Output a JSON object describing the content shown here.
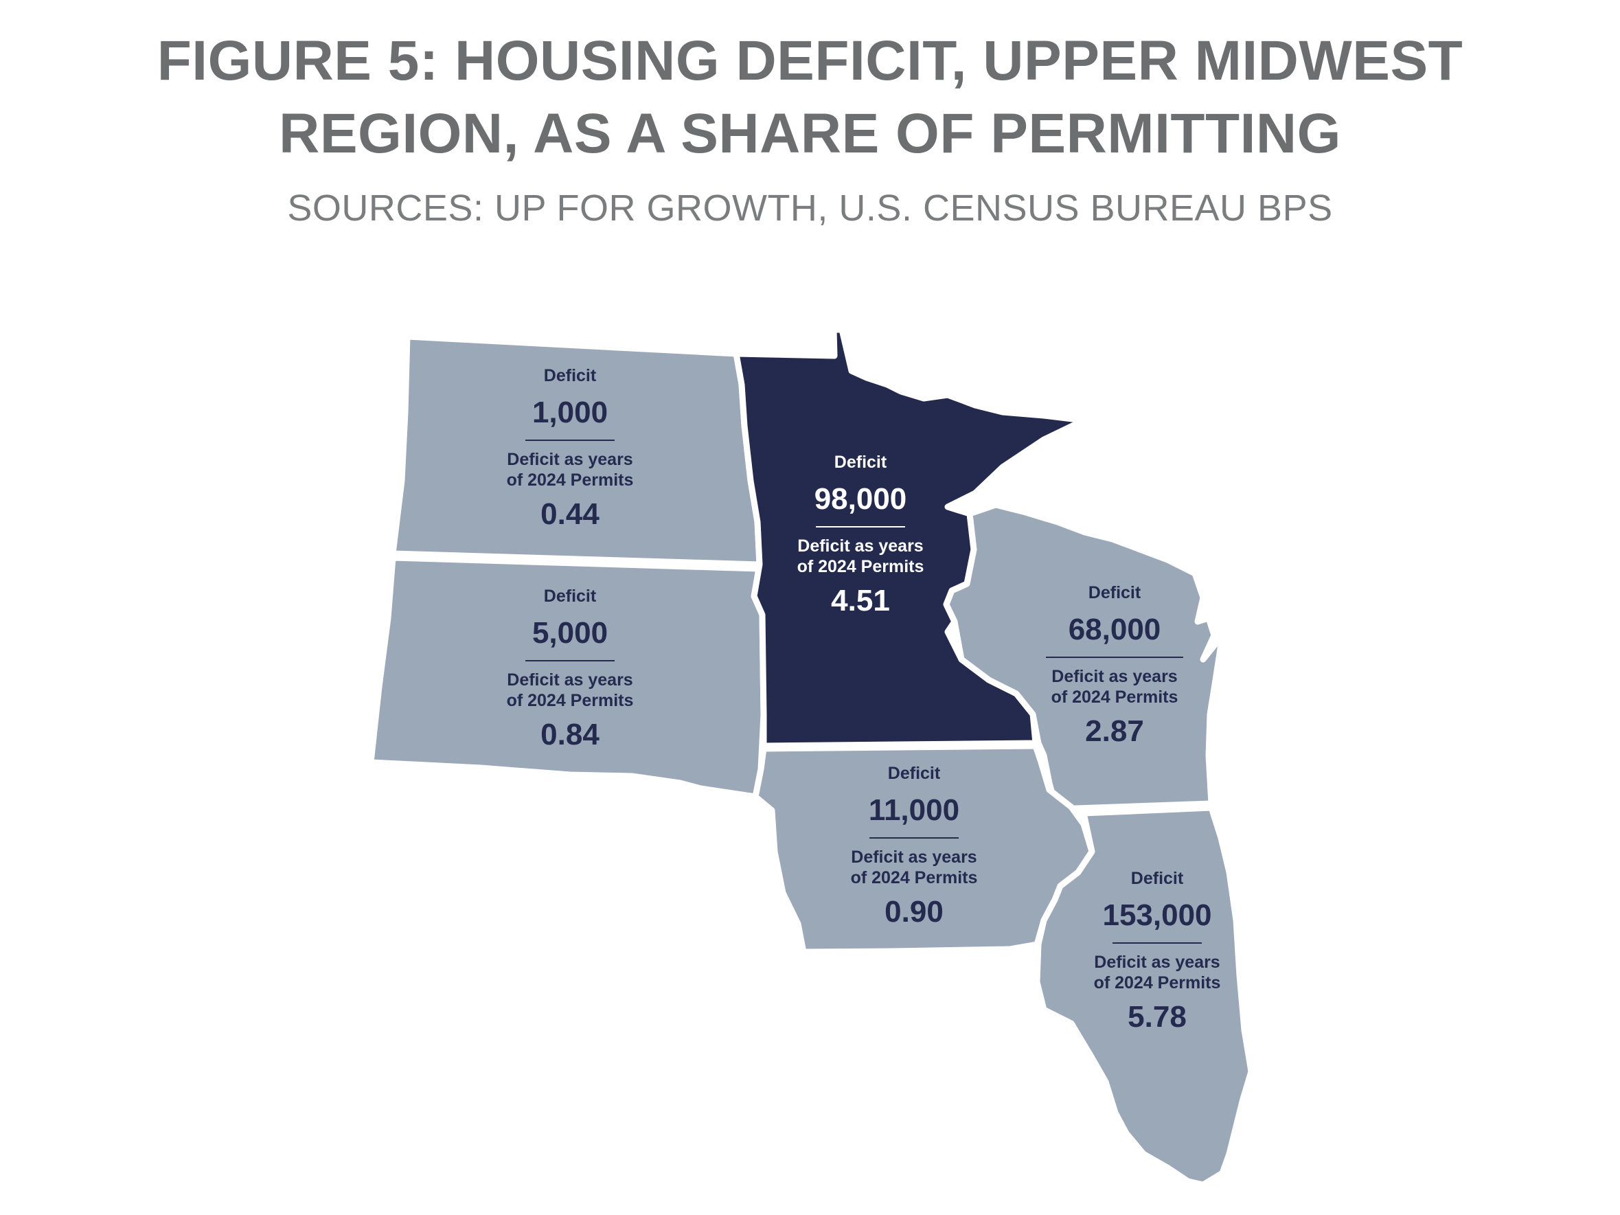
{
  "title_line1": "FIGURE 5: HOUSING DEFICIT, UPPER MIDWEST",
  "title_line2": "REGION, AS A SHARE OF PERMITTING",
  "subtitle": "SOURCES: UP FOR GROWTH, U.S. CENSUS BUREAU BPS",
  "colors": {
    "state_fill": "#9aa8b8",
    "highlight_fill": "#232a4e",
    "label_dark": "#242b4f",
    "title_gray": "#6d6e70"
  },
  "states": {
    "north_dakota": {
      "deficit_label": "Deficit",
      "deficit": "1,000",
      "years_label_line1": "Deficit as years",
      "years_label_line2": "of 2024 Permits",
      "years": "0.44"
    },
    "south_dakota": {
      "deficit_label": "Deficit",
      "deficit": "5,000",
      "years_label_line1": "Deficit as years",
      "years_label_line2": "of 2024 Permits",
      "years": "0.84"
    },
    "minnesota": {
      "deficit_label": "Deficit",
      "deficit": "98,000",
      "years_label_line1": "Deficit as years",
      "years_label_line2": "of 2024 Permits",
      "years": "4.51",
      "highlighted": true
    },
    "wisconsin": {
      "deficit_label": "Deficit",
      "deficit": "68,000",
      "years_label_line1": "Deficit as years",
      "years_label_line2": "of 2024 Permits",
      "years": "2.87"
    },
    "iowa": {
      "deficit_label": "Deficit",
      "deficit": "11,000",
      "years_label_line1": "Deficit as years",
      "years_label_line2": "of 2024 Permits",
      "years": "0.90"
    },
    "illinois": {
      "deficit_label": "Deficit",
      "deficit": "153,000",
      "years_label_line1": "Deficit as years",
      "years_label_line2": "of 2024 Permits",
      "years": "5.78"
    }
  }
}
